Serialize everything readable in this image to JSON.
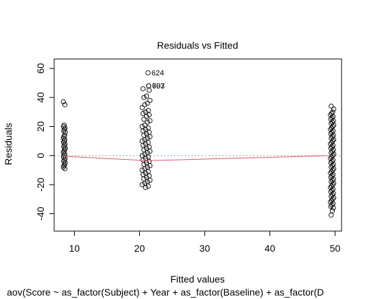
{
  "chart_data": {
    "type": "scatter",
    "title": "Residuals vs Fitted",
    "xlabel": "Fitted values",
    "ylabel": "Residuals",
    "sub": "aov(Score ~ as_factor(Subject) + Year + as_factor(Baseline) + as_factor(D",
    "xlim": [
      6.9,
      51.0
    ],
    "ylim": [
      -52.0,
      66.5
    ],
    "xticks": [
      10,
      20,
      30,
      40,
      50
    ],
    "yticks": [
      -40,
      -20,
      0,
      20,
      40,
      60
    ],
    "grid": false,
    "colors": {
      "points": "#000000",
      "smoother": "#df536b",
      "zero_line": "#999999"
    },
    "clusters": [
      {
        "x_min": 8.3,
        "x_max": 8.6,
        "y_values": [
          37,
          35,
          21,
          20,
          19,
          18,
          17,
          16,
          14,
          13,
          12,
          11,
          10,
          9,
          8,
          7,
          6,
          5,
          4,
          3,
          2,
          1,
          0,
          -1,
          -2,
          -3,
          -4,
          -5,
          -6,
          -7,
          -8,
          -9
        ]
      },
      {
        "x_min": 20.4,
        "x_max": 21.6,
        "y_values": [
          46,
          45,
          41,
          40,
          38,
          36,
          35,
          33,
          31,
          30,
          29,
          28,
          27,
          25,
          24,
          23,
          21,
          20,
          19,
          18,
          17,
          16,
          15,
          14,
          13,
          12,
          11,
          10,
          9,
          8,
          7,
          6,
          5,
          4,
          3,
          2,
          1,
          0,
          -1,
          -2,
          -3,
          -4,
          -5,
          -6,
          -7,
          -8,
          -9,
          -10,
          -11,
          -12,
          -13,
          -14,
          -15,
          -16,
          -17,
          -18,
          -19,
          -20,
          -21,
          -22
        ]
      },
      {
        "x_min": 49.3,
        "x_max": 49.8,
        "y_values": [
          34,
          32,
          30,
          29,
          28,
          27,
          26,
          25,
          24,
          23,
          22,
          21,
          20,
          19,
          18,
          17,
          16,
          15,
          14,
          13,
          12,
          11,
          10,
          9,
          8,
          7,
          6,
          5,
          4,
          3,
          2,
          1,
          0,
          -1,
          -2,
          -3,
          -4,
          -5,
          -6,
          -7,
          -8,
          -9,
          -10,
          -11,
          -12,
          -13,
          -14,
          -15,
          -16,
          -17,
          -18,
          -19,
          -20,
          -21,
          -22,
          -23,
          -24,
          -25,
          -26,
          -27,
          -28,
          -29,
          -30,
          -31,
          -32,
          -33,
          -34,
          -35,
          -36,
          -38,
          -41
        ]
      }
    ],
    "labeled_points": [
      {
        "label": "624",
        "x": 21.3,
        "y": 57
      },
      {
        "label": "797",
        "x": 21.4,
        "y": 48
      },
      {
        "label": "603",
        "x": 21.4,
        "y": 48
      }
    ],
    "smoother": {
      "x": [
        8.4,
        21.2,
        49.6
      ],
      "y": [
        -0.5,
        -3.5,
        0
      ]
    }
  }
}
